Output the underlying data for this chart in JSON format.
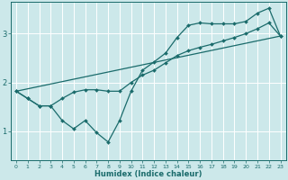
{
  "title": "",
  "xlabel": "Humidex (Indice chaleur)",
  "bg_color": "#cce8ea",
  "line_color": "#1a6b6b",
  "grid_color": "#ffffff",
  "xlim": [
    -0.5,
    23.5
  ],
  "ylim": [
    0.4,
    3.65
  ],
  "yticks": [
    1,
    2,
    3
  ],
  "xticks": [
    0,
    1,
    2,
    3,
    4,
    5,
    6,
    7,
    8,
    9,
    10,
    11,
    12,
    13,
    14,
    15,
    16,
    17,
    18,
    19,
    20,
    21,
    22,
    23
  ],
  "line1_x": [
    0,
    1,
    2,
    3,
    4,
    5,
    6,
    7,
    8,
    9,
    10,
    11,
    12,
    13,
    14,
    15,
    16,
    17,
    18,
    19,
    20,
    21,
    22,
    23
  ],
  "line1_y": [
    1.82,
    1.67,
    1.52,
    1.52,
    1.22,
    1.05,
    1.22,
    0.97,
    0.78,
    1.22,
    1.82,
    2.25,
    2.42,
    2.6,
    2.92,
    3.17,
    3.22,
    3.2,
    3.2,
    3.2,
    3.25,
    3.42,
    3.52,
    2.95
  ],
  "line2_x": [
    0,
    1,
    2,
    3,
    4,
    5,
    6,
    7,
    8,
    9,
    10,
    11,
    12,
    13,
    14,
    15,
    16,
    17,
    18,
    19,
    20,
    21,
    22,
    23
  ],
  "line2_y": [
    1.82,
    1.67,
    1.52,
    1.52,
    1.67,
    1.8,
    1.85,
    1.85,
    1.82,
    1.82,
    2.0,
    2.15,
    2.25,
    2.4,
    2.55,
    2.65,
    2.72,
    2.78,
    2.85,
    2.92,
    3.0,
    3.1,
    3.22,
    2.95
  ],
  "line3_x": [
    0,
    23
  ],
  "line3_y": [
    1.82,
    2.95
  ]
}
